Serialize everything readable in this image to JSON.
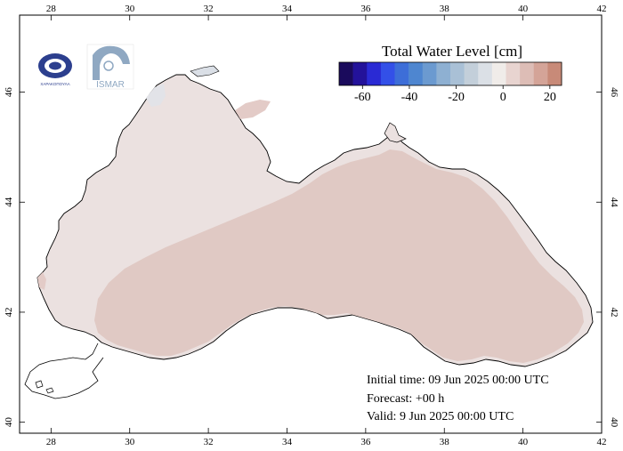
{
  "map": {
    "colorbar": {
      "title": "Total Water Level [cm]",
      "ticks": [
        "-60",
        "-40",
        "-20",
        "0",
        "20"
      ],
      "tick_values": [
        -60,
        -40,
        -20,
        0,
        20
      ],
      "range": [
        -70,
        25
      ],
      "colors": [
        "#1a0a5c",
        "#23129a",
        "#2a2ad4",
        "#3350e8",
        "#3d6ed8",
        "#4e86d0",
        "#6b9ad0",
        "#8eb0d2",
        "#a9c0d6",
        "#c3cfda",
        "#dbe0e6",
        "#f0ece9",
        "#e8d4d0",
        "#ddbdb6",
        "#d4a498",
        "#c88a78"
      ]
    },
    "lon_ticks": [
      "28",
      "30",
      "32",
      "34",
      "36",
      "38",
      "40",
      "42"
    ],
    "lat_ticks": [
      "40",
      "42",
      "44",
      "46"
    ],
    "sea_fill_colors": {
      "shelf": "#ebe1e0",
      "basin": "#e0c9c4",
      "azov_patch": "#dadfe6"
    }
  },
  "logos": {
    "left_text": "ΧΑΡΑΚΟΠΟΥΛΑ",
    "right_text": "ISMAR"
  },
  "info": {
    "initial_time": "Initial time: 09 Jun 2025 00:00 UTC",
    "forecast": "Forecast: +00 h",
    "valid": "Valid:  9 Jun 2025 00:00 UTC"
  }
}
